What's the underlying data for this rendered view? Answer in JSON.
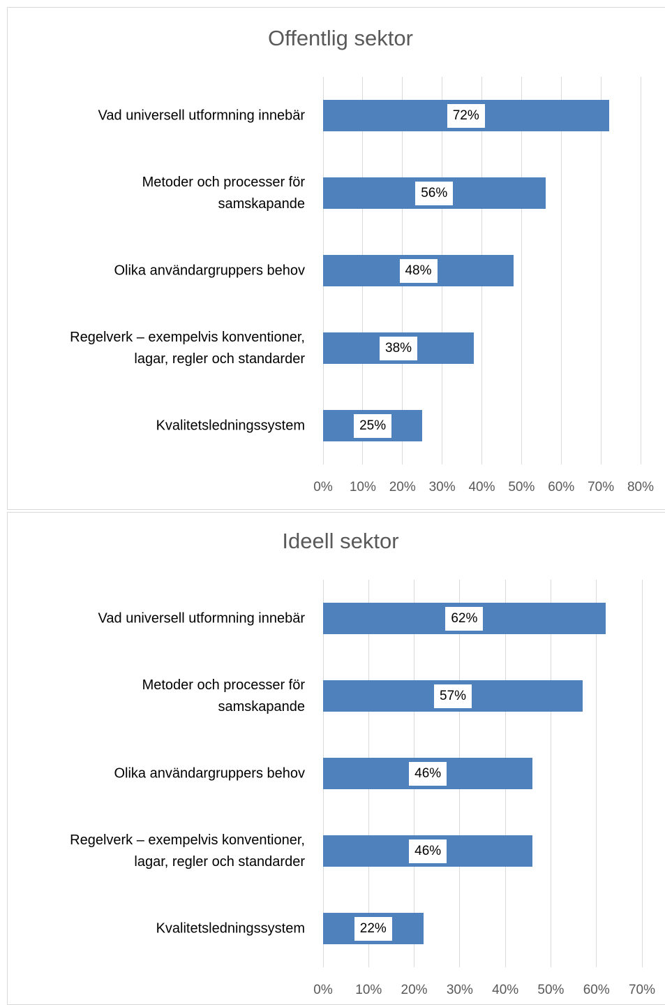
{
  "chart_data": [
    {
      "type": "bar",
      "orientation": "horizontal",
      "title": "Offentlig sektor",
      "categories": [
        "Vad universell utformning innebär",
        "Metoder och processer för\nsamskapande",
        "Olika användargruppers behov",
        "Regelverk – exempelvis konventioner,\nlagar, regler och standarder",
        "Kvalitetsledningssystem"
      ],
      "values": [
        72,
        56,
        48,
        38,
        25
      ],
      "value_labels": [
        "72%",
        "56%",
        "48%",
        "38%",
        "25%"
      ],
      "color": "#4f81bd",
      "xlim": [
        0,
        80
      ],
      "xticks": [
        {
          "value": 0,
          "label": "0%"
        },
        {
          "value": 10,
          "label": "10%"
        },
        {
          "value": 20,
          "label": "20%"
        },
        {
          "value": 30,
          "label": "30%"
        },
        {
          "value": 40,
          "label": "40%"
        },
        {
          "value": 50,
          "label": "50%"
        },
        {
          "value": 60,
          "label": "60%"
        },
        {
          "value": 70,
          "label": "70%"
        },
        {
          "value": 80,
          "label": "80%"
        }
      ],
      "grid": true
    },
    {
      "type": "bar",
      "orientation": "horizontal",
      "title": "Ideell sektor",
      "categories": [
        "Vad universell utformning innebär",
        "Metoder och processer för\nsamskapande",
        "Olika användargruppers behov",
        "Regelverk – exempelvis konventioner,\nlagar, regler och standarder",
        "Kvalitetsledningssystem"
      ],
      "values": [
        62,
        57,
        46,
        46,
        22
      ],
      "value_labels": [
        "62%",
        "57%",
        "46%",
        "46%",
        "22%"
      ],
      "color": "#4f81bd",
      "xlim": [
        0,
        70
      ],
      "xticks": [
        {
          "value": 0,
          "label": "0%"
        },
        {
          "value": 10,
          "label": "10%"
        },
        {
          "value": 20,
          "label": "20%"
        },
        {
          "value": 30,
          "label": "30%"
        },
        {
          "value": 40,
          "label": "40%"
        },
        {
          "value": 50,
          "label": "50%"
        },
        {
          "value": 60,
          "label": "60%"
        },
        {
          "value": 70,
          "label": "70%"
        }
      ],
      "grid": true
    }
  ]
}
